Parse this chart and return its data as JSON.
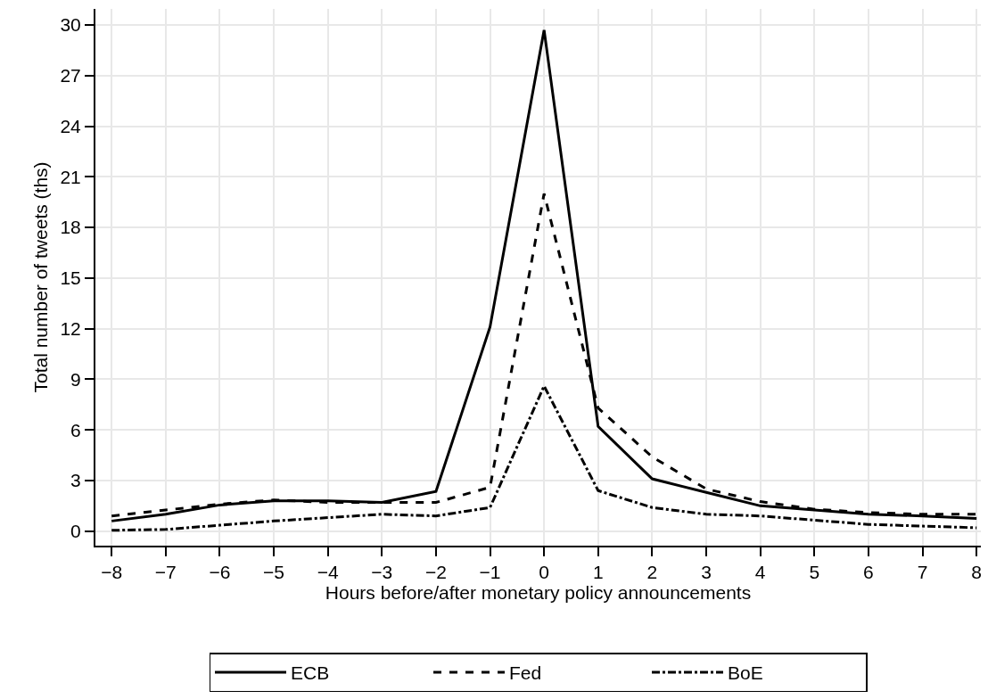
{
  "chart_data": {
    "type": "line",
    "xlabel": "Hours before/after monetary policy announcements",
    "ylabel": "Total number of tweets (ths)",
    "x": [
      -8,
      -7,
      -6,
      -5,
      -4,
      -3,
      -2,
      -1,
      0,
      1,
      2,
      3,
      4,
      5,
      6,
      7,
      8
    ],
    "series": [
      {
        "name": "ECB",
        "color": "#000000",
        "line_style": "solid",
        "values": [
          0.6,
          1.0,
          1.55,
          1.8,
          1.8,
          1.7,
          2.35,
          12.1,
          29.7,
          6.2,
          3.1,
          2.3,
          1.5,
          1.25,
          1.0,
          0.9,
          0.75
        ]
      },
      {
        "name": "Fed",
        "color": "#000000",
        "line_style": "dashed",
        "values": [
          0.9,
          1.25,
          1.6,
          1.85,
          1.7,
          1.7,
          1.7,
          2.6,
          20.0,
          7.3,
          4.4,
          2.5,
          1.75,
          1.3,
          1.1,
          1.0,
          1.0
        ]
      },
      {
        "name": "BoE",
        "color": "#000000",
        "line_style": "dashdot",
        "values": [
          0.05,
          0.1,
          0.35,
          0.6,
          0.8,
          1.0,
          0.9,
          1.4,
          8.6,
          2.4,
          1.4,
          1.0,
          0.9,
          0.65,
          0.4,
          0.3,
          0.2
        ]
      }
    ],
    "xlim": [
      -8.3,
      8.08
    ],
    "xticks": [
      {
        "value": -8,
        "label": "−8"
      },
      {
        "value": -7,
        "label": "−7"
      },
      {
        "value": -6,
        "label": "−6"
      },
      {
        "value": -5,
        "label": "−5"
      },
      {
        "value": -4,
        "label": "−4"
      },
      {
        "value": -3,
        "label": "−3"
      },
      {
        "value": -2,
        "label": "−2"
      },
      {
        "value": -1,
        "label": "−1"
      },
      0,
      1,
      2,
      3,
      4,
      5,
      6,
      7,
      8
    ],
    "ylim": [
      -0.86,
      30.95
    ],
    "yticks": [
      0,
      3,
      6,
      9,
      12,
      15,
      18,
      21,
      24,
      27,
      30
    ],
    "grid": true,
    "legend": "bottom",
    "marker": "none"
  }
}
